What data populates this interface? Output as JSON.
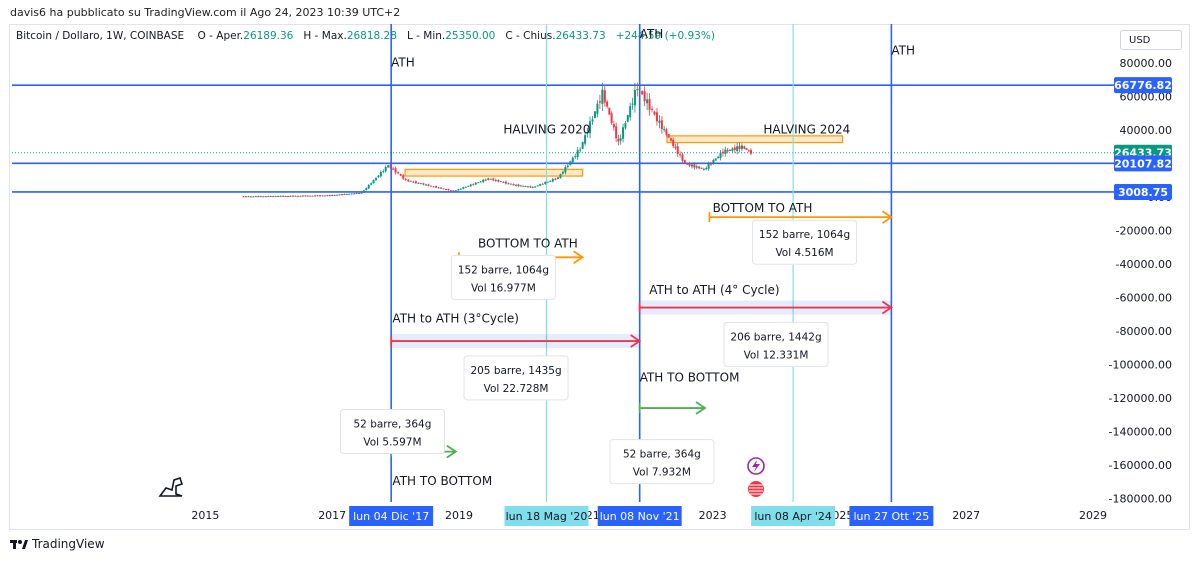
{
  "publisher_note": "davis6 ha pubblicato su TradingView.com il Ago 24, 2023 10:39 UTC+2",
  "header": {
    "symbol": "Bitcoin / Dollaro, 1W, COINBASE",
    "open_label": "O - Aper.",
    "open": "26189.36",
    "high_label": "H - Max.",
    "high": "26818.28",
    "low_label": "L - Min.",
    "low": "25350.00",
    "close_label": "C - Chius.",
    "close": "26433.73",
    "change": "+244.59 (+0.93%)"
  },
  "currency_button": "USD",
  "footer_brand": "TradingView",
  "colors": {
    "blue": "#2962ff",
    "cyan": "#80deea",
    "orange": "#ff9800",
    "red": "#f23645",
    "green": "#4caf50",
    "candle_up": "#089981",
    "candle_down": "#f23645"
  },
  "chart_data": {
    "type": "candlestick",
    "x_axis": {
      "ticks": [
        "2015",
        "2017",
        "2019",
        "2021",
        "2023",
        "2025",
        "2027",
        "2029"
      ]
    },
    "y_axis": {
      "ticks": [
        "80000.00",
        "60000.00",
        "40000.00",
        "20000.00",
        "0.00",
        "-20000.00",
        "-40000.00",
        "-60000.00",
        "-80000.00",
        "-100000.00",
        "-120000.00",
        "-140000.00",
        "-160000.00",
        "-180000.00"
      ],
      "range": [
        -188000,
        92000
      ]
    },
    "price_series": [
      [
        2015.6,
        280
      ],
      [
        2016.5,
        650
      ],
      [
        2017.0,
        1000
      ],
      [
        2017.5,
        2500
      ],
      [
        2017.92,
        19000
      ],
      [
        2018.2,
        10000
      ],
      [
        2018.6,
        6500
      ],
      [
        2018.95,
        3500
      ],
      [
        2019.5,
        11000
      ],
      [
        2019.9,
        7200
      ],
      [
        2020.2,
        5800
      ],
      [
        2020.6,
        11500
      ],
      [
        2020.95,
        29000
      ],
      [
        2021.3,
        62000
      ],
      [
        2021.55,
        32000
      ],
      [
        2021.85,
        66000
      ],
      [
        2022.2,
        44000
      ],
      [
        2022.45,
        29000
      ],
      [
        2022.6,
        20000
      ],
      [
        2022.9,
        16500
      ],
      [
        2023.2,
        27000
      ],
      [
        2023.5,
        30000
      ],
      [
        2023.64,
        26433
      ]
    ],
    "price_labels": [
      {
        "text": "66776.82",
        "value": 66776.82
      },
      {
        "text": "26433.73",
        "value": 26433.73
      },
      {
        "text": "20107.82",
        "value": 20107.82
      },
      {
        "text": "3008.75",
        "value": 3008.75
      }
    ],
    "vertical_lines": [
      {
        "x": 2017.93,
        "label": "lun 04 Dic '17",
        "color": "blue"
      },
      {
        "x": 2020.38,
        "label": "lun 18 Mag '20",
        "color": "cyan"
      },
      {
        "x": 2021.85,
        "label": "lun 08 Nov '21",
        "color": "blue"
      },
      {
        "x": 2024.27,
        "label": "lun 08 Apr '24",
        "color": "cyan"
      },
      {
        "x": 2025.82,
        "label": "lun 27 Ott '25",
        "color": "blue"
      }
    ],
    "text_labels": [
      {
        "text": "ATH",
        "x": 2017.93,
        "y": 78000
      },
      {
        "text": "ATH",
        "x": 2021.85,
        "y": 95000
      },
      {
        "text": "ATH",
        "x": 2025.82,
        "y": 85000
      },
      {
        "text": "HALVING 2020",
        "x": 2019.7,
        "y": 38000
      },
      {
        "text": "HALVING 2024",
        "x": 2023.8,
        "y": 38000
      },
      {
        "text": "BOTTOM TO ATH",
        "x": 2019.3,
        "y": -30000
      },
      {
        "text": "BOTTOM TO ATH",
        "x": 2023.0,
        "y": -9000
      },
      {
        "text": "ATH to ATH (3°Cycle)",
        "x": 2017.95,
        "y": -75000
      },
      {
        "text": "ATH to ATH (4° Cycle)",
        "x": 2022.0,
        "y": -58000
      },
      {
        "text": "ATH TO BOTTOM",
        "x": 2021.85,
        "y": -110000
      },
      {
        "text": "ATH TO BOTTOM",
        "x": 2017.95,
        "y": -172000
      }
    ],
    "info_boxes": [
      {
        "line1": "152 barre, 1064g",
        "line2": "Vol 16.977M",
        "x": 2019.7,
        "y": -48000
      },
      {
        "line1": "152 barre, 1064g",
        "line2": "Vol 4.516M",
        "x": 2024.45,
        "y": -27000
      },
      {
        "line1": "205 barre, 1435g",
        "line2": "Vol 22.728M",
        "x": 2019.9,
        "y": -108000
      },
      {
        "line1": "206 barre, 1442g",
        "line2": "Vol 12.331M",
        "x": 2024.0,
        "y": -88000
      },
      {
        "line1": "52 barre, 364g",
        "line2": "Vol 5.597M",
        "x": 2017.95,
        "y": -140000
      },
      {
        "line1": "52 barre, 364g",
        "line2": "Vol 7.932M",
        "x": 2022.2,
        "y": -158000
      }
    ],
    "arrows": [
      {
        "x1": 2019.0,
        "x2": 2020.95,
        "y": -36000,
        "color": "orange",
        "shade": false
      },
      {
        "x1": 2022.95,
        "x2": 2025.82,
        "y": -12000,
        "color": "orange",
        "shade": false
      },
      {
        "x1": 2017.93,
        "x2": 2021.85,
        "y": -86000,
        "color": "red",
        "shade": true
      },
      {
        "x1": 2021.85,
        "x2": 2025.82,
        "y": -66000,
        "color": "red",
        "shade": true
      },
      {
        "x1": 2017.93,
        "x2": 2018.95,
        "y": -152000,
        "color": "green",
        "shade": false
      },
      {
        "x1": 2021.85,
        "x2": 2022.88,
        "y": -126000,
        "color": "green",
        "shade": false
      }
    ],
    "zones": [
      {
        "x1": 2018.15,
        "x2": 2020.95,
        "y1": 12500,
        "y2": 16500
      },
      {
        "x1": 2022.28,
        "x2": 2025.05,
        "y1": 32500,
        "y2": 36500
      }
    ],
    "icons": [
      "lightning-icon",
      "flag-icon",
      "dino-icon"
    ]
  }
}
